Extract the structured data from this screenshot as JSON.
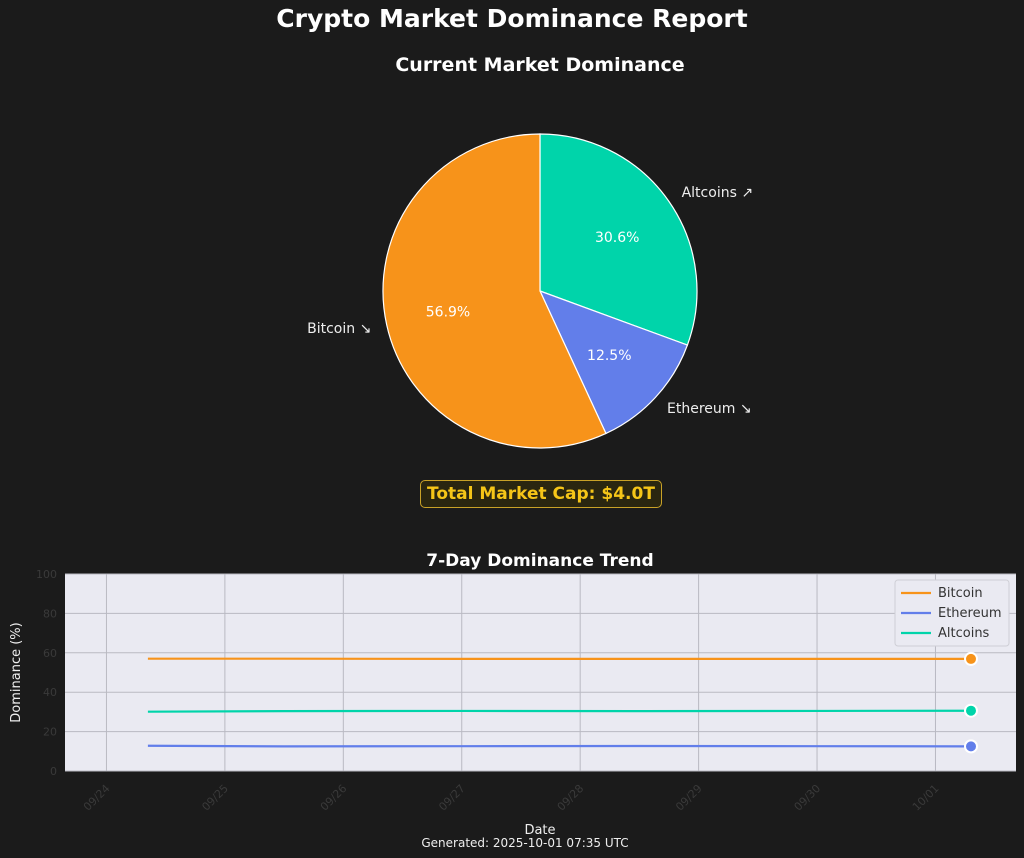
{
  "title": "Crypto Market Dominance Report",
  "total_market_cap_label": "Total Market Cap: $4.0T",
  "footer": "Generated: 2025-10-01 07:35 UTC",
  "colors": {
    "bitcoin": "#f7931a",
    "ethereum": "#627eea",
    "altcoins": "#00d4aa",
    "background": "#1b1b1b",
    "plot_bg": "#eaeaf2",
    "highlight": "#f5c518"
  },
  "chart_data": [
    {
      "type": "pie",
      "title": "Current Market Dominance",
      "slices": [
        {
          "label": "Bitcoin ↘",
          "value": 56.9,
          "pct_label": "56.9%",
          "color": "#f7931a"
        },
        {
          "label": "Ethereum ↘",
          "value": 12.5,
          "pct_label": "12.5%",
          "color": "#627eea"
        },
        {
          "label": "Altcoins ↗",
          "value": 30.6,
          "pct_label": "30.6%",
          "color": "#00d4aa"
        }
      ]
    },
    {
      "type": "line",
      "title": "7-Day Dominance Trend",
      "xlabel": "Date",
      "ylabel": "Dominance (%)",
      "ylim": [
        0,
        100
      ],
      "yticks": [
        0,
        20,
        40,
        60,
        80,
        100
      ],
      "x_start": "2025-09-24",
      "x_ticks": [
        "09/24",
        "09/25",
        "09/26",
        "09/27",
        "09/28",
        "09/29",
        "09/30",
        "10/01"
      ],
      "grid": true,
      "legend": "top-right",
      "series": [
        {
          "name": "Bitcoin",
          "color": "#f7931a",
          "x": [
            0.35,
            1.5,
            3,
            4.5,
            6,
            7.3
          ],
          "values": [
            57.0,
            57.0,
            56.9,
            56.9,
            56.9,
            56.9
          ]
        },
        {
          "name": "Ethereum",
          "color": "#627eea",
          "x": [
            0.35,
            1.5,
            3,
            4.5,
            6,
            7.3
          ],
          "values": [
            12.8,
            12.5,
            12.6,
            12.7,
            12.6,
            12.5
          ]
        },
        {
          "name": "Altcoins",
          "color": "#00d4aa",
          "x": [
            0.35,
            1.5,
            3,
            4.5,
            6,
            7.3
          ],
          "values": [
            30.1,
            30.4,
            30.5,
            30.4,
            30.5,
            30.6
          ]
        }
      ]
    }
  ]
}
